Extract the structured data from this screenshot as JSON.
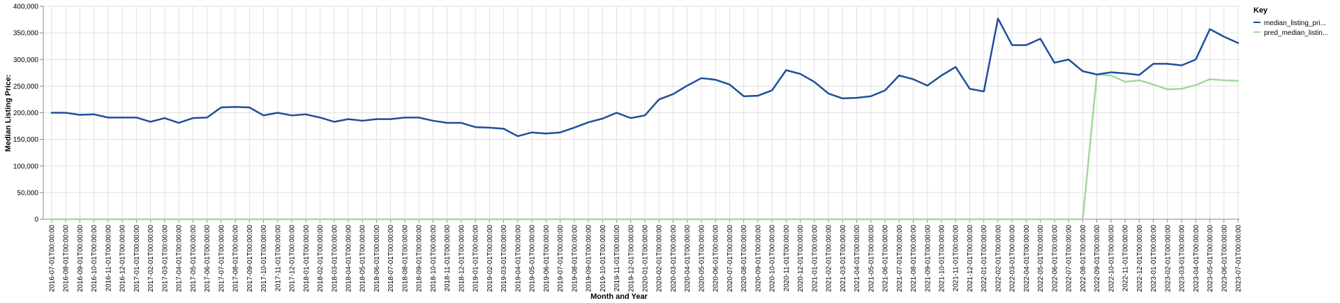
{
  "chart_data": {
    "type": "line",
    "xlabel": "Month and Year",
    "ylabel": "Median Listing Price:",
    "ylim": [
      0,
      400000
    ],
    "yticks": [
      "0",
      "50,000",
      "100,000",
      "150,000",
      "200,000",
      "250,000",
      "300,000",
      "350,000",
      "400,000"
    ],
    "grid": true,
    "legend": {
      "title": "Key",
      "placement": "top-right",
      "entries": [
        "median_listing_pri...",
        "pred_median_listin..."
      ]
    },
    "x": [
      "2016-07-01T00:00:00",
      "2016-08-01T00:00:00",
      "2016-09-01T00:00:00",
      "2016-10-01T00:00:00",
      "2016-11-01T00:00:00",
      "2016-12-01T00:00:00",
      "2017-01-01T00:00:00",
      "2017-02-01T00:00:00",
      "2017-03-01T00:00:00",
      "2017-04-01T00:00:00",
      "2017-05-01T00:00:00",
      "2017-06-01T00:00:00",
      "2017-07-01T00:00:00",
      "2017-08-01T00:00:00",
      "2017-09-01T00:00:00",
      "2017-10-01T00:00:00",
      "2017-11-01T00:00:00",
      "2017-12-01T00:00:00",
      "2018-01-01T00:00:00",
      "2018-02-01T00:00:00",
      "2018-03-01T00:00:00",
      "2018-04-01T00:00:00",
      "2018-05-01T00:00:00",
      "2018-06-01T00:00:00",
      "2018-07-01T00:00:00",
      "2018-08-01T00:00:00",
      "2018-09-01T00:00:00",
      "2018-10-01T00:00:00",
      "2018-11-01T00:00:00",
      "2018-12-01T00:00:00",
      "2019-01-01T00:00:00",
      "2019-02-01T00:00:00",
      "2019-03-01T00:00:00",
      "2019-04-01T00:00:00",
      "2019-05-01T00:00:00",
      "2019-06-01T00:00:00",
      "2019-07-01T00:00:00",
      "2019-08-01T00:00:00",
      "2019-09-01T00:00:00",
      "2019-10-01T00:00:00",
      "2019-11-01T00:00:00",
      "2019-12-01T00:00:00",
      "2020-01-01T00:00:00",
      "2020-02-01T00:00:00",
      "2020-03-01T00:00:00",
      "2020-04-01T00:00:00",
      "2020-05-01T00:00:00",
      "2020-06-01T00:00:00",
      "2020-07-01T00:00:00",
      "2020-08-01T00:00:00",
      "2020-09-01T00:00:00",
      "2020-10-01T00:00:00",
      "2020-11-01T00:00:00",
      "2020-12-01T00:00:00",
      "2021-01-01T00:00:00",
      "2021-02-01T00:00:00",
      "2021-03-01T00:00:00",
      "2021-04-01T00:00:00",
      "2021-05-01T00:00:00",
      "2021-06-01T00:00:00",
      "2021-07-01T00:00:00",
      "2021-08-01T00:00:00",
      "2021-09-01T00:00:00",
      "2021-10-01T00:00:00",
      "2021-11-01T00:00:00",
      "2021-12-01T00:00:00",
      "2022-01-01T00:00:00",
      "2022-02-01T00:00:00",
      "2022-03-01T00:00:00",
      "2022-04-01T00:00:00",
      "2022-05-01T00:00:00",
      "2022-06-01T00:00:00",
      "2022-07-01T00:00:00",
      "2022-08-01T00:00:00",
      "2022-09-01T00:00:00",
      "2022-10-01T00:00:00",
      "2022-11-01T00:00:00",
      "2022-12-01T00:00:00",
      "2023-01-01T00:00:00",
      "2023-02-01T00:00:00",
      "2023-03-01T00:00:00",
      "2023-04-01T00:00:00",
      "2023-05-01T00:00:00",
      "2023-06-01T00:00:00",
      "2023-07-01T00:00:00"
    ],
    "series": [
      {
        "name": "median_listing_pri...",
        "color": "#1f4e9c",
        "values": [
          200000,
          200000,
          196000,
          197000,
          191000,
          191000,
          191000,
          183000,
          190000,
          181000,
          190000,
          191000,
          210000,
          211000,
          210000,
          195000,
          200000,
          195000,
          197000,
          191000,
          183000,
          188000,
          185000,
          188000,
          188000,
          191000,
          191000,
          185000,
          181000,
          181000,
          173000,
          172000,
          170000,
          156000,
          163000,
          161000,
          163000,
          172000,
          182000,
          189000,
          200000,
          190000,
          195000,
          225000,
          235000,
          251000,
          265000,
          262000,
          253000,
          231000,
          232000,
          242000,
          280000,
          273000,
          258000,
          236000,
          227000,
          228000,
          231000,
          242000,
          270000,
          263000,
          251000,
          270000,
          286000,
          245000,
          240000,
          377000,
          327000,
          327000,
          339000,
          294000,
          300000,
          278000,
          272000,
          276000,
          274000,
          271000,
          292000,
          292000,
          289000,
          300000,
          357000,
          343000,
          331000
        ]
      },
      {
        "name": "pred_median_listin...",
        "color": "#a1d99b",
        "values": [
          0,
          0,
          0,
          0,
          0,
          0,
          0,
          0,
          0,
          0,
          0,
          0,
          0,
          0,
          0,
          0,
          0,
          0,
          0,
          0,
          0,
          0,
          0,
          0,
          0,
          0,
          0,
          0,
          0,
          0,
          0,
          0,
          0,
          0,
          0,
          0,
          0,
          0,
          0,
          0,
          0,
          0,
          0,
          0,
          0,
          0,
          0,
          0,
          0,
          0,
          0,
          0,
          0,
          0,
          0,
          0,
          0,
          0,
          0,
          0,
          0,
          0,
          0,
          0,
          0,
          0,
          0,
          0,
          0,
          0,
          0,
          0,
          0,
          0,
          272000,
          270000,
          258000,
          261000,
          253000,
          244000,
          245000,
          252000,
          263000,
          261000,
          260000
        ]
      }
    ]
  }
}
